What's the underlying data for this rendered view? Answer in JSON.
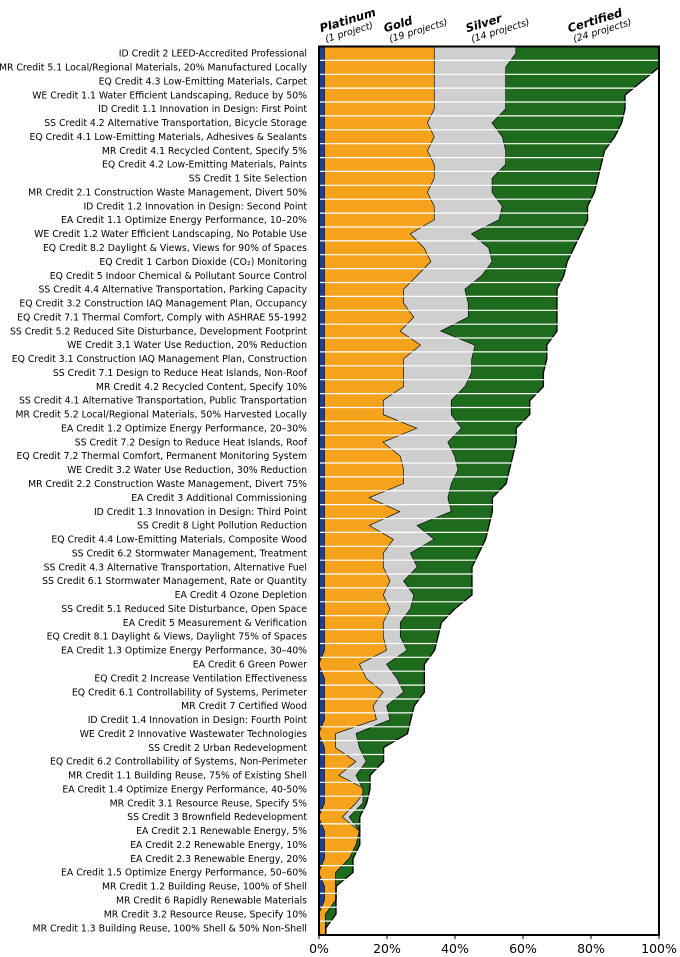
{
  "chart_data": {
    "type": "stacked-area-bar",
    "title": "",
    "xlabel": "",
    "ylabel": "",
    "xlim": [
      0,
      100
    ],
    "x_ticks": [
      "0%",
      "20%",
      "40%",
      "60%",
      "80%",
      "100%"
    ],
    "legend_position": "top",
    "series": [
      {
        "name": "Platinum",
        "subtitle": "(1 project)",
        "color": "#1c3f9a"
      },
      {
        "name": "Gold",
        "subtitle": "(19 projects)",
        "color": "#f5a21c"
      },
      {
        "name": "Silver",
        "subtitle": "(14 projects)",
        "color": "#cfcfcf"
      },
      {
        "name": "Certified",
        "subtitle": "(24 projects)",
        "color": "#1e6b1e"
      }
    ],
    "categories": [
      "ID Credit 2 LEED-Accredited Professional",
      "MR Credit 5.1 Local/Regional Materials, 20% Manufactured Locally",
      "EQ Credit 4.3 Low-Emitting Materials, Carpet",
      "WE Credit 1.1 Water Efficient Landscaping, Reduce by 50%",
      "ID Credit 1.1 Innovation in Design: First Point",
      "SS Credit 4.2 Alternative Transportation, Bicycle Storage",
      "EQ Credit 4.1 Low-Emitting Materials, Adhesives & Sealants",
      "MR Credit 4.1 Recycled Content, Specify 5%",
      "EQ Credit 4.2 Low-Emitting Materials, Paints",
      "SS Credit 1 Site Selection",
      "MR Credit 2.1 Construction Waste Management, Divert 50%",
      "ID Credit 1.2 Innovation in Design: Second Point",
      "EA Credit 1.1 Optimize Energy Performance, 10–20%",
      "WE Credit 1.2 Water Efficient Landscaping, No Potable Use",
      "EQ Credit 8.2 Daylight & Views, Views for 90% of Spaces",
      "EQ Credit 1 Carbon Dioxide (CO₂) Monitoring",
      "EQ Credit 5 Indoor Chemical & Pollutant Source Control",
      "SS Credit 4.4 Alternative Transportation, Parking Capacity",
      "EQ Credit 3.2 Construction IAQ Management Plan, Occupancy",
      "EQ Credit 7.1 Thermal Comfort, Comply with ASHRAE 55-1992",
      "SS Credit 5.2 Reduced Site Disturbance, Development Footprint",
      "WE Credit 3.1 Water Use Reduction, 20% Reduction",
      "EQ Credit 3.1 Construction IAQ Management Plan, Construction",
      "SS Credit 7.1 Design to Reduce Heat Islands, Non-Roof",
      "MR Credit 4.2 Recycled Content, Specify 10%",
      "SS Credit 4.1 Alternative Transportation, Public Transportation",
      "MR Credit 5.2 Local/Regional Materials, 50% Harvested Locally",
      "EA Credit 1.2 Optimize Energy Performance, 20–30%",
      "SS Credit 7.2 Design to Reduce Heat Islands, Roof",
      "EQ Credit 7.2 Thermal Comfort, Permanent Monitoring System",
      "WE Credit 3.2 Water Use Reduction, 30% Reduction",
      "MR Credit 2.2 Construction Waste Management, Divert 75%",
      "EA Credit 3 Additional Commissioning",
      "ID Credit 1.3 Innovation in Design: Third Point",
      "SS Credit 8 Light Pollution Reduction",
      "EQ Credit 4.4 Low-Emitting Materials, Composite Wood",
      "SS Credit 6.2 Stormwater Management, Treatment",
      "SS Credit 4.3 Alternative Transportation, Alternative Fuel",
      "SS Credit 6.1 Stormwater Management, Rate or Quantity",
      "EA Credit 4 Ozone Depletion",
      "SS Credit 5.1 Reduced Site Disturbance, Open Space",
      "EA Credit 5 Measurement & Verification",
      "EQ Credit 8.1 Daylight & Views, Daylight 75% of Spaces",
      "EA Credit 1.3 Optimize Energy Performance, 30–40%",
      "EA Credit 6 Green Power",
      "EQ Credit 2 Increase Ventilation Effectiveness",
      "EQ Credit 6.1 Controllability of Systems, Perimeter",
      "MR Credit 7 Certified Wood",
      "ID Credit 1.4 Innovation in Design: Fourth Point",
      "WE Credit 2 Innovative Wastewater Technologies",
      "SS Credit 2 Urban Redevelopment",
      "EQ Credit 6.2 Controllability of Systems, Non-Perimeter",
      "MR Credit 1.1 Building Reuse, 75% of Existing Shell",
      "EA Credit 1.4 Optimize Energy Performance, 40-50%",
      "MR Credit 3.1 Resource Reuse, Specify 5%",
      "SS Credit 3 Brownfield Redevelopment",
      "EA Credit 2.1 Renewable Energy, 5%",
      "EA Credit 2.2 Renewable Energy, 10%",
      "EA Credit 2.3 Renewable Energy, 20%",
      "EA Credit 1.5 Optimize Energy Performance, 50–60%",
      "MR Credit 1.2 Building Reuse, 100% of Shell",
      "MR Credit 6 Rapidly Renewable Materials",
      "MR Credit 3.2 Resource Reuse, Specify 10%",
      "MR Credit 1.3 Building Reuse, 100% Shell & 50% Non-Shell"
    ],
    "cumulative_values": {
      "Platinum": [
        1.7,
        1.7,
        1.7,
        1.7,
        1.7,
        1.7,
        1.7,
        1.7,
        1.7,
        1.7,
        1.7,
        1.7,
        1.7,
        1.7,
        1.7,
        1.7,
        1.7,
        1.7,
        1.7,
        1.7,
        1.7,
        1.7,
        1.7,
        1.7,
        1.7,
        1.7,
        1.7,
        1.7,
        1.7,
        1.7,
        1.7,
        1.7,
        1.7,
        1.7,
        1.7,
        1.7,
        1.7,
        1.7,
        1.7,
        1.7,
        1.7,
        1.7,
        1.7,
        1.7,
        0,
        1.7,
        1.7,
        1.7,
        1.7,
        0,
        1.7,
        1.7,
        1.7,
        1.7,
        1.7,
        0,
        1.7,
        1.7,
        1.7,
        0,
        1.7,
        1.7,
        0,
        0
      ],
      "Gold": [
        34,
        34,
        34,
        34,
        34,
        32,
        34,
        32,
        34,
        34,
        32,
        34,
        34,
        27,
        31,
        33,
        29,
        25,
        25,
        28,
        24,
        30,
        25,
        25,
        25,
        19,
        19,
        29,
        19,
        24,
        25,
        25,
        15,
        24,
        15,
        22,
        19,
        19,
        21,
        19,
        21,
        19,
        19,
        20,
        12,
        14,
        19,
        16,
        17,
        5,
        5,
        11,
        6,
        14,
        11,
        7,
        12,
        11,
        9,
        5,
        5,
        5,
        2,
        2
      ],
      "Silver": [
        58,
        55,
        55,
        55,
        55,
        51,
        54,
        55,
        55,
        51,
        51,
        54,
        53,
        45,
        50,
        51,
        48,
        43,
        44,
        44,
        36,
        46,
        45,
        45,
        43,
        39,
        39,
        42,
        38,
        40,
        41,
        39,
        38,
        39,
        29,
        34,
        27,
        29,
        25,
        28,
        27,
        24,
        24,
        26,
        20,
        23,
        25,
        20,
        21,
        11,
        12,
        14,
        11,
        13,
        13,
        9,
        12,
        11,
        9,
        5,
        5,
        5,
        2,
        2
      ],
      "Certified": [
        100,
        100,
        95,
        90,
        90,
        89,
        87,
        84,
        83,
        82,
        81,
        79,
        79,
        77,
        75,
        73,
        72,
        70,
        70,
        70,
        70,
        67,
        67,
        66,
        66,
        62,
        62,
        58,
        58,
        57,
        56,
        55,
        51,
        51,
        50,
        49,
        47,
        45,
        45,
        45,
        40,
        36,
        35,
        34,
        31,
        31,
        31,
        28,
        27,
        26,
        19,
        19,
        15,
        15,
        14,
        12,
        12,
        12,
        10,
        10,
        5,
        5,
        5,
        2
      ]
    }
  }
}
